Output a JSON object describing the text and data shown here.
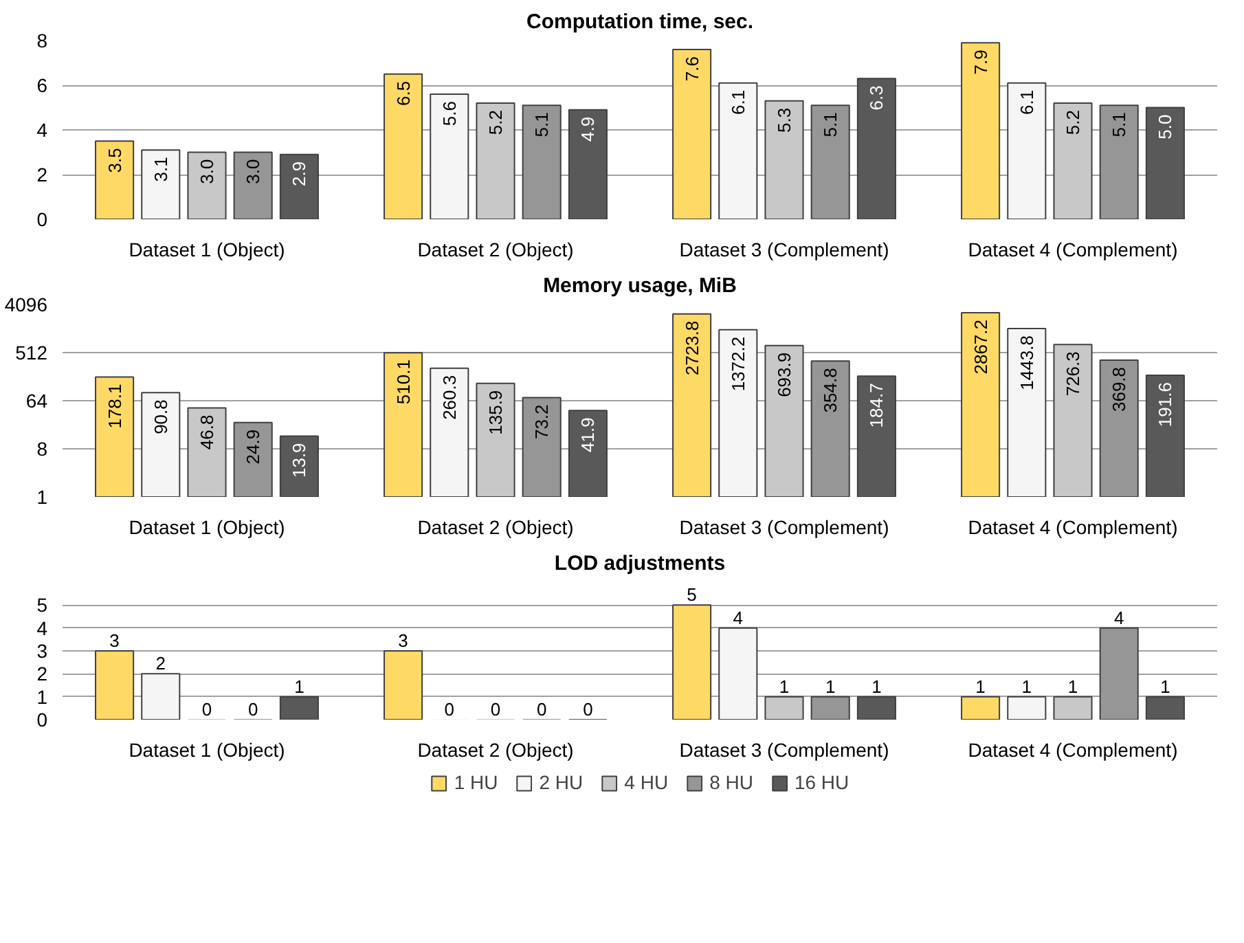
{
  "chart_data": [
    {
      "type": "bar",
      "title": "Computation time, sec.",
      "categories": [
        "Dataset 1 (Object)",
        "Dataset 2 (Object)",
        "Dataset 3 (Complement)",
        "Dataset 4 (Complement)"
      ],
      "series": [
        {
          "color": "#ffd966",
          "values": [
            3.5,
            6.5,
            7.6,
            7.9
          ],
          "value_labels": [
            "3.5",
            "6.5",
            "7.6",
            "7.9"
          ]
        },
        {
          "color": "#f5f5f5",
          "values": [
            3.1,
            5.6,
            6.1,
            6.1
          ],
          "value_labels": [
            "3.1",
            "5.6",
            "6.1",
            "6.1"
          ]
        },
        {
          "color": "#c8c8c8",
          "values": [
            3.0,
            5.2,
            5.3,
            5.2
          ],
          "value_labels": [
            "3.0",
            "5.2",
            "5.3",
            "5.2"
          ]
        },
        {
          "color": "#969696",
          "values": [
            3.0,
            5.1,
            5.1,
            5.1
          ],
          "value_labels": [
            "3.0",
            "5.1",
            "5.1",
            "5.1"
          ]
        },
        {
          "color": "#595959",
          "values": [
            2.9,
            4.9,
            6.3,
            5.0
          ],
          "value_labels": [
            "2.9",
            "4.9",
            "6.3",
            "5.0"
          ]
        }
      ],
      "ylim": [
        0,
        8
      ],
      "yticks": [
        0,
        2,
        4,
        6,
        8
      ],
      "grid": "y"
    },
    {
      "type": "bar",
      "title": "Memory usage, MiB",
      "categories": [
        "Dataset 1 (Object)",
        "Dataset 2 (Object)",
        "Dataset 3 (Complement)",
        "Dataset 4 (Complement)"
      ],
      "series": [
        {
          "color": "#ffd966",
          "values": [
            178.1,
            510.1,
            2723.8,
            2867.2
          ]
        },
        {
          "color": "#f5f5f5",
          "values": [
            90.8,
            260.3,
            1372.2,
            1443.8
          ]
        },
        {
          "color": "#c8c8c8",
          "values": [
            46.8,
            135.9,
            693.9,
            726.3
          ]
        },
        {
          "color": "#969696",
          "values": [
            24.9,
            73.2,
            354.8,
            369.8
          ]
        },
        {
          "color": "#595959",
          "values": [
            13.9,
            41.9,
            184.7,
            191.6
          ]
        }
      ],
      "log": "y",
      "ylim": [
        1,
        4096
      ],
      "yticks": [
        1,
        8,
        64,
        512,
        4096
      ],
      "grid": "y",
      "data_labels": true
    },
    {
      "type": "bar",
      "title": "LOD adjustments",
      "categories": [
        "Dataset 1 (Object)",
        "Dataset 2 (Object)",
        "Dataset 3 (Complement)",
        "Dataset 4 (Complement)"
      ],
      "series": [
        {
          "name": "1 HU",
          "color": "#ffd966",
          "values": [
            3,
            3,
            5,
            1
          ]
        },
        {
          "name": "2 HU",
          "color": "#f5f5f5",
          "values": [
            2,
            0,
            4,
            1
          ]
        },
        {
          "name": "4 HU",
          "color": "#c8c8c8",
          "values": [
            0,
            0,
            1,
            1
          ]
        },
        {
          "name": "8 HU",
          "color": "#969696",
          "values": [
            0,
            0,
            1,
            4
          ]
        },
        {
          "name": "16 HU",
          "color": "#595959",
          "values": [
            1,
            0,
            1,
            1
          ]
        }
      ],
      "ylim": [
        0,
        5
      ],
      "yticks": [
        0,
        1,
        2,
        3,
        4,
        5
      ],
      "grid": "y",
      "data_labels": true,
      "legend": "bottom"
    }
  ]
}
